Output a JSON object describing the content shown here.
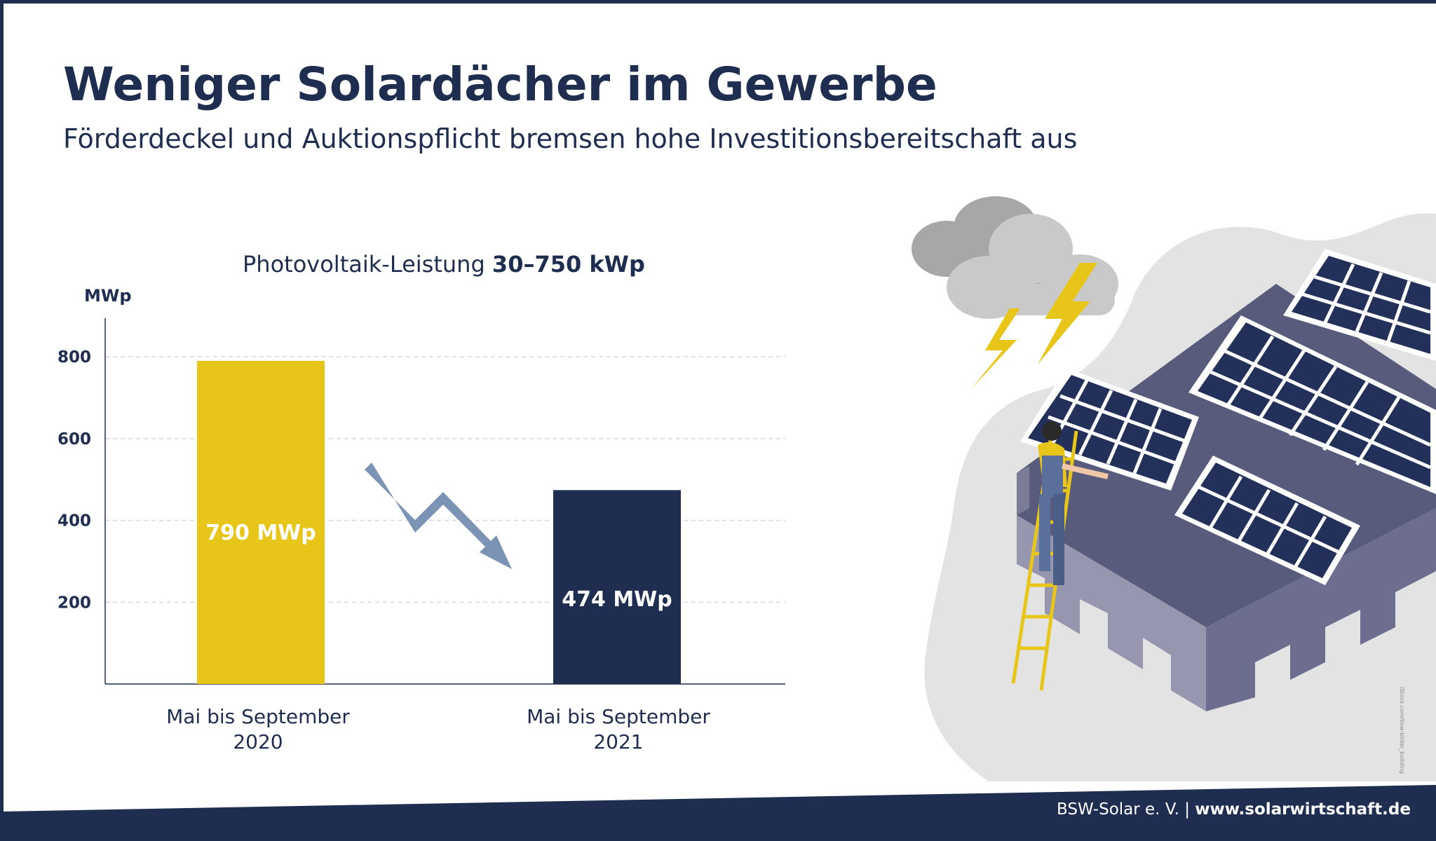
{
  "title": "Weniger Solardächer im Gewerbe",
  "subtitle": "Förderdeckel und Auktionspflicht bremsen hohe Investitionsbereitschaft aus",
  "footer": {
    "org": "BSW-Solar e. V.",
    "separator": "|",
    "url": "www.solarwirtschaft.de"
  },
  "credit": "iStock.com/bsw-bilder_building",
  "colors": {
    "navy": "#1f2d50",
    "yellow": "#e8c619",
    "arrow": "#7b93b4"
  },
  "chart_data": {
    "type": "bar",
    "title_prefix": "Photovoltaik-Leistung",
    "title_bold": "30–750 kWp",
    "ylabel": "MWp",
    "ylim": [
      0,
      880
    ],
    "yticks": [
      200,
      400,
      600,
      800
    ],
    "grid": true,
    "categories": [
      [
        "Mai bis September",
        "2020"
      ],
      [
        "Mai bis September",
        "2021"
      ]
    ],
    "values": [
      790,
      474
    ],
    "value_labels": [
      "790 MWp",
      "474 MWp"
    ],
    "bar_colors": [
      "#e8c619",
      "#1f2d50"
    ],
    "annotation": "downward-trend-arrow"
  }
}
